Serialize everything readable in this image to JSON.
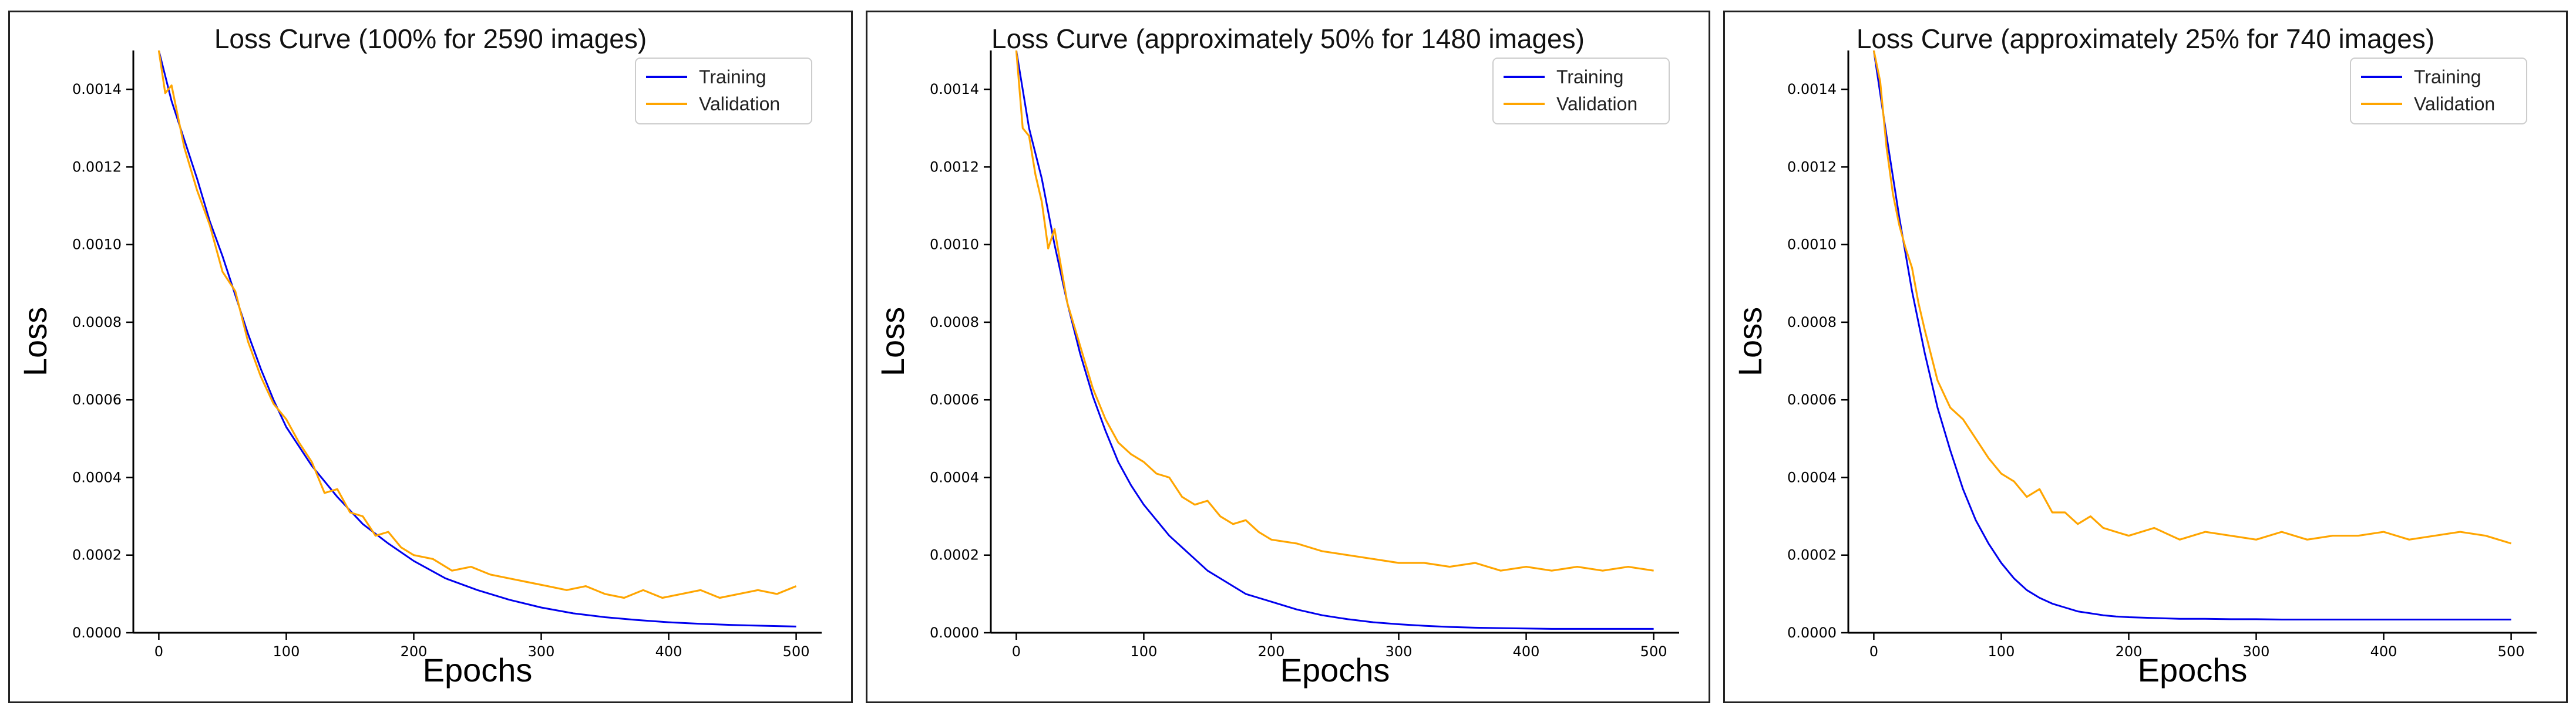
{
  "colors": {
    "training": "#0000ee",
    "validation": "#ffa500",
    "axis": "#000000"
  },
  "chart_data": [
    {
      "type": "line",
      "title": "Loss Curve (100% for 2590 images)",
      "xlabel": "Epochs",
      "ylabel": "Loss",
      "xlim": [
        -20,
        520
      ],
      "ylim": [
        0,
        0.0015
      ],
      "xticks": [
        0,
        100,
        200,
        300,
        400,
        500
      ],
      "xtick_labels": [
        "0",
        "100",
        "200",
        "300",
        "400",
        "500"
      ],
      "yticks": [
        0,
        0.0002,
        0.0004,
        0.0006,
        0.0008,
        0.001,
        0.0012,
        0.0014
      ],
      "ytick_labels": [
        "0.0000",
        "0.0002",
        "0.0004",
        "0.0006",
        "0.0008",
        "0.0010",
        "0.0012",
        "0.0014"
      ],
      "legend": {
        "position": "top-right",
        "entries": [
          "Training",
          "Validation"
        ]
      },
      "series": [
        {
          "name": "Training",
          "x": [
            0,
            10,
            20,
            30,
            40,
            50,
            60,
            70,
            80,
            90,
            100,
            120,
            140,
            160,
            180,
            200,
            225,
            250,
            275,
            300,
            325,
            350,
            375,
            400,
            425,
            450,
            475,
            500
          ],
          "y": [
            0.0015,
            0.00137,
            0.00127,
            0.00117,
            0.00106,
            0.00097,
            0.00087,
            0.00077,
            0.00068,
            0.0006,
            0.00053,
            0.00043,
            0.00035,
            0.00028,
            0.00023,
            0.000185,
            0.00014,
            0.00011,
            8.5e-05,
            6.5e-05,
            5e-05,
            4e-05,
            3.3e-05,
            2.7e-05,
            2.3e-05,
            2e-05,
            1.8e-05,
            1.6e-05
          ]
        },
        {
          "name": "Validation",
          "x": [
            0,
            5,
            10,
            20,
            30,
            40,
            50,
            60,
            70,
            80,
            90,
            100,
            110,
            120,
            130,
            140,
            150,
            160,
            170,
            180,
            190,
            200,
            215,
            230,
            245,
            260,
            275,
            290,
            305,
            320,
            335,
            350,
            365,
            380,
            395,
            410,
            425,
            440,
            455,
            470,
            485,
            500
          ],
          "y": [
            0.0015,
            0.00139,
            0.00141,
            0.00125,
            0.00114,
            0.00105,
            0.00093,
            0.00088,
            0.00075,
            0.00066,
            0.00059,
            0.00055,
            0.00049,
            0.00044,
            0.00036,
            0.00037,
            0.00031,
            0.0003,
            0.00025,
            0.00026,
            0.00022,
            0.0002,
            0.00019,
            0.00016,
            0.00017,
            0.00015,
            0.00014,
            0.00013,
            0.00012,
            0.00011,
            0.00012,
            0.0001,
            9e-05,
            0.00011,
            9e-05,
            0.0001,
            0.00011,
            9e-05,
            0.0001,
            0.00011,
            0.0001,
            0.00012
          ]
        }
      ]
    },
    {
      "type": "line",
      "title": "Loss Curve (approximately 50% for 1480 images)",
      "xlabel": "Epochs",
      "ylabel": "Loss",
      "xlim": [
        -20,
        520
      ],
      "ylim": [
        0,
        0.0015
      ],
      "xticks": [
        0,
        100,
        200,
        300,
        400,
        500
      ],
      "xtick_labels": [
        "0",
        "100",
        "200",
        "300",
        "400",
        "500"
      ],
      "yticks": [
        0,
        0.0002,
        0.0004,
        0.0006,
        0.0008,
        0.001,
        0.0012,
        0.0014
      ],
      "ytick_labels": [
        "0.0000",
        "0.0002",
        "0.0004",
        "0.0006",
        "0.0008",
        "0.0010",
        "0.0012",
        "0.0014"
      ],
      "legend": {
        "position": "top-right",
        "entries": [
          "Training",
          "Validation"
        ]
      },
      "series": [
        {
          "name": "Training",
          "x": [
            0,
            10,
            20,
            30,
            40,
            50,
            60,
            70,
            80,
            90,
            100,
            110,
            120,
            130,
            140,
            150,
            160,
            170,
            180,
            190,
            200,
            220,
            240,
            260,
            280,
            300,
            320,
            340,
            360,
            380,
            400,
            420,
            440,
            460,
            480,
            500
          ],
          "y": [
            0.0015,
            0.0013,
            0.00117,
            0.001,
            0.00085,
            0.00072,
            0.00061,
            0.00052,
            0.00044,
            0.00038,
            0.00033,
            0.00029,
            0.00025,
            0.00022,
            0.00019,
            0.00016,
            0.00014,
            0.00012,
            0.0001,
            9e-05,
            8e-05,
            6e-05,
            4.5e-05,
            3.5e-05,
            2.7e-05,
            2.2e-05,
            1.8e-05,
            1.5e-05,
            1.3e-05,
            1.2e-05,
            1.1e-05,
            1e-05,
            1e-05,
            1e-05,
            1e-05,
            1e-05
          ]
        },
        {
          "name": "Validation",
          "x": [
            0,
            5,
            10,
            15,
            20,
            25,
            30,
            40,
            50,
            60,
            70,
            80,
            90,
            100,
            110,
            120,
            130,
            140,
            150,
            160,
            170,
            180,
            190,
            200,
            220,
            240,
            260,
            280,
            300,
            320,
            340,
            360,
            380,
            400,
            420,
            440,
            460,
            480,
            500
          ],
          "y": [
            0.0015,
            0.0013,
            0.00128,
            0.00118,
            0.00111,
            0.00099,
            0.00104,
            0.00085,
            0.00074,
            0.00063,
            0.00055,
            0.00049,
            0.00046,
            0.00044,
            0.00041,
            0.0004,
            0.00035,
            0.00033,
            0.00034,
            0.0003,
            0.00028,
            0.00029,
            0.00026,
            0.00024,
            0.00023,
            0.00021,
            0.0002,
            0.00019,
            0.00018,
            0.00018,
            0.00017,
            0.00018,
            0.00016,
            0.00017,
            0.00016,
            0.00017,
            0.00016,
            0.00017,
            0.00016
          ]
        }
      ]
    },
    {
      "type": "line",
      "title": "Loss Curve (approximately 25% for 740 images)",
      "xlabel": "Epochs",
      "ylabel": "Loss",
      "xlim": [
        -20,
        520
      ],
      "ylim": [
        0,
        0.0015
      ],
      "xticks": [
        0,
        100,
        200,
        300,
        400,
        500
      ],
      "xtick_labels": [
        "0",
        "100",
        "200",
        "300",
        "400",
        "500"
      ],
      "yticks": [
        0,
        0.0002,
        0.0004,
        0.0006,
        0.0008,
        0.001,
        0.0012,
        0.0014
      ],
      "ytick_labels": [
        "0.0000",
        "0.0002",
        "0.0004",
        "0.0006",
        "0.0008",
        "0.0010",
        "0.0012",
        "0.0014"
      ],
      "legend": {
        "position": "top-right",
        "entries": [
          "Training",
          "Validation"
        ]
      },
      "series": [
        {
          "name": "Training",
          "x": [
            0,
            10,
            20,
            30,
            40,
            50,
            60,
            70,
            80,
            90,
            100,
            110,
            120,
            130,
            140,
            150,
            160,
            170,
            180,
            190,
            200,
            220,
            240,
            260,
            280,
            300,
            320,
            340,
            360,
            380,
            400,
            420,
            440,
            460,
            480,
            500
          ],
          "y": [
            0.0015,
            0.00128,
            0.00107,
            0.00088,
            0.00072,
            0.00058,
            0.00047,
            0.00037,
            0.00029,
            0.00023,
            0.00018,
            0.00014,
            0.00011,
            9e-05,
            7.5e-05,
            6.5e-05,
            5.5e-05,
            5e-05,
            4.5e-05,
            4.2e-05,
            4e-05,
            3.8e-05,
            3.6e-05,
            3.6e-05,
            3.5e-05,
            3.5e-05,
            3.4e-05,
            3.4e-05,
            3.4e-05,
            3.4e-05,
            3.4e-05,
            3.4e-05,
            3.4e-05,
            3.4e-05,
            3.4e-05,
            3.4e-05
          ]
        },
        {
          "name": "Validation",
          "x": [
            0,
            5,
            10,
            15,
            20,
            25,
            30,
            35,
            40,
            50,
            60,
            70,
            80,
            90,
            100,
            110,
            120,
            130,
            140,
            150,
            160,
            170,
            180,
            190,
            200,
            220,
            240,
            260,
            280,
            300,
            320,
            340,
            360,
            380,
            400,
            420,
            440,
            460,
            480,
            500
          ],
          "y": [
            0.0015,
            0.00142,
            0.00125,
            0.00113,
            0.00105,
            0.00099,
            0.00094,
            0.00085,
            0.00078,
            0.00065,
            0.00058,
            0.00055,
            0.0005,
            0.00045,
            0.00041,
            0.00039,
            0.00035,
            0.00037,
            0.00031,
            0.00031,
            0.00028,
            0.0003,
            0.00027,
            0.00026,
            0.00025,
            0.00027,
            0.00024,
            0.00026,
            0.00025,
            0.00024,
            0.00026,
            0.00024,
            0.00025,
            0.00025,
            0.00026,
            0.00024,
            0.00025,
            0.00026,
            0.00025,
            0.00023
          ]
        }
      ]
    }
  ]
}
